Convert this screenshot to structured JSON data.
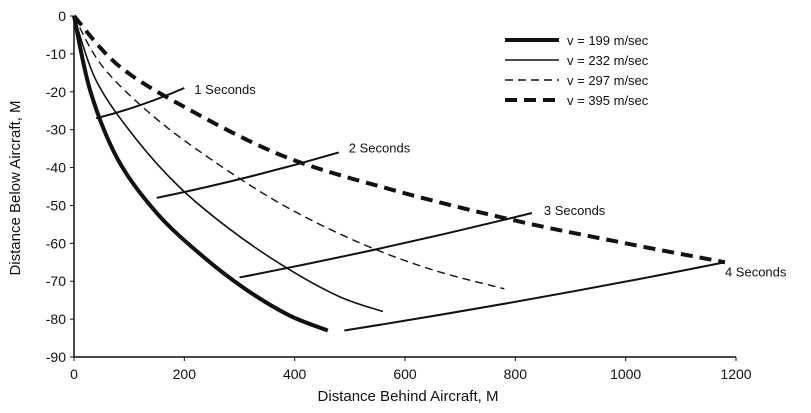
{
  "chart_data": {
    "type": "line",
    "title": "",
    "xlabel": "Distance Behind Aircraft, M",
    "ylabel": "Distance Below Aircraft, M",
    "xlim": [
      0,
      1200
    ],
    "ylim": [
      -90,
      0
    ],
    "xticks": [
      0,
      200,
      400,
      600,
      800,
      1000,
      1200
    ],
    "yticks": [
      0,
      -10,
      -20,
      -30,
      -40,
      -50,
      -60,
      -70,
      -80,
      -90
    ],
    "x_tick_labels": [
      "0",
      "200",
      "400",
      "600",
      "800",
      "1000",
      "1200"
    ],
    "y_tick_labels": [
      "0",
      "-10",
      "-20",
      "-30",
      "-40",
      "-50",
      "-60",
      "-70",
      "-80",
      "-90"
    ],
    "grid": false,
    "legend_position": "top-right",
    "series": [
      {
        "name": "v = 199 m/sec",
        "style": "solid-thick",
        "x": [
          0,
          30,
          80,
          150,
          230,
          310,
          390,
          460
        ],
        "y": [
          0,
          -20,
          -38,
          -52,
          -63,
          -72,
          -79,
          -83
        ]
      },
      {
        "name": "v = 232 m/sec",
        "style": "solid-thin",
        "x": [
          0,
          40,
          110,
          190,
          280,
          380,
          480,
          560
        ],
        "y": [
          0,
          -17,
          -32,
          -45,
          -56,
          -66,
          -74,
          -78
        ]
      },
      {
        "name": "v = 297 m/sec",
        "style": "dashed-thin",
        "x": [
          0,
          50,
          140,
          250,
          380,
          520,
          650,
          780
        ],
        "y": [
          0,
          -13,
          -26,
          -38,
          -50,
          -60,
          -67,
          -72
        ]
      },
      {
        "name": "v = 395 m/sec",
        "style": "dashed-thick",
        "x": [
          0,
          80,
          200,
          380,
          580,
          800,
          1000,
          1180
        ],
        "y": [
          0,
          -13,
          -24,
          -37,
          -46,
          -54,
          -60,
          -65
        ]
      }
    ],
    "time_lines": [
      {
        "label": "1 Seconds",
        "x": [
          40,
          200
        ],
        "y": [
          -27,
          -19
        ]
      },
      {
        "label": "2 Seconds",
        "x": [
          150,
          480
        ],
        "y": [
          -48,
          -36
        ]
      },
      {
        "label": "3 Seconds",
        "x": [
          300,
          830
        ],
        "y": [
          -69,
          -52
        ]
      },
      {
        "label": "4 Seconds",
        "x": [
          490,
          1180
        ],
        "y": [
          -83,
          -65
        ]
      }
    ]
  }
}
